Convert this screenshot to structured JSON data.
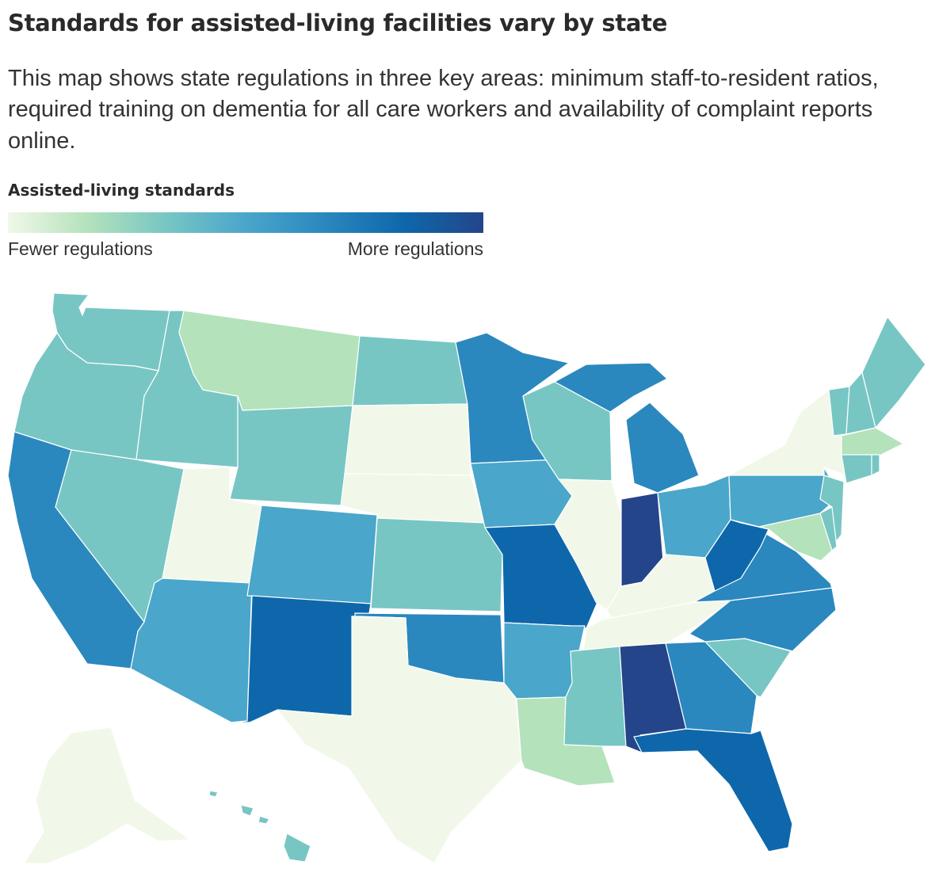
{
  "title": "Standards for assisted-living facilities vary by state",
  "subtitle": "This map shows state regulations in three key areas: minimum staff-to-resident ratios, required training on dementia for all care workers and availability of complaint reports online.",
  "legend": {
    "title": "Assisted-living standards",
    "low_label": "Fewer regulations",
    "high_label": "More regulations",
    "colors": [
      "#f1f8e9",
      "#b4e2bb",
      "#77c6c4",
      "#4aa6ca",
      "#2a88be",
      "#0e67ab",
      "#24458a"
    ]
  },
  "map_data": {
    "type": "choropleth",
    "scale": "regulation level, 0 = fewer regulations, 6 = more regulations",
    "states": [
      {
        "name": "WA",
        "level": 2
      },
      {
        "name": "OR",
        "level": 2
      },
      {
        "name": "CA",
        "level": 4
      },
      {
        "name": "ID",
        "level": 2
      },
      {
        "name": "NV",
        "level": 2
      },
      {
        "name": "MT",
        "level": 1
      },
      {
        "name": "WY",
        "level": 2
      },
      {
        "name": "UT",
        "level": 0
      },
      {
        "name": "AZ",
        "level": 3
      },
      {
        "name": "CO",
        "level": 3
      },
      {
        "name": "NM",
        "level": 5
      },
      {
        "name": "ND",
        "level": 2
      },
      {
        "name": "SD",
        "level": 0
      },
      {
        "name": "NE",
        "level": 0
      },
      {
        "name": "KS",
        "level": 2
      },
      {
        "name": "OK",
        "level": 4
      },
      {
        "name": "TX",
        "level": 0
      },
      {
        "name": "MN",
        "level": 4
      },
      {
        "name": "IA",
        "level": 3
      },
      {
        "name": "MO",
        "level": 5
      },
      {
        "name": "AR",
        "level": 3
      },
      {
        "name": "LA",
        "level": 1
      },
      {
        "name": "WI",
        "level": 2
      },
      {
        "name": "IL",
        "level": 0
      },
      {
        "name": "MI",
        "level": 4
      },
      {
        "name": "IN",
        "level": 6
      },
      {
        "name": "OH",
        "level": 3
      },
      {
        "name": "KY",
        "level": 0
      },
      {
        "name": "TN",
        "level": 0
      },
      {
        "name": "MS",
        "level": 2
      },
      {
        "name": "AL",
        "level": 6
      },
      {
        "name": "GA",
        "level": 4
      },
      {
        "name": "FL",
        "level": 5
      },
      {
        "name": "SC",
        "level": 2
      },
      {
        "name": "NC",
        "level": 4
      },
      {
        "name": "VA",
        "level": 4
      },
      {
        "name": "WV",
        "level": 5
      },
      {
        "name": "PA",
        "level": 3
      },
      {
        "name": "NY",
        "level": 0
      },
      {
        "name": "VT",
        "level": 2
      },
      {
        "name": "NH",
        "level": 2
      },
      {
        "name": "ME",
        "level": 2
      },
      {
        "name": "MA",
        "level": 1
      },
      {
        "name": "RI",
        "level": 2
      },
      {
        "name": "CT",
        "level": 2
      },
      {
        "name": "NJ",
        "level": 2
      },
      {
        "name": "DE",
        "level": 2
      },
      {
        "name": "MD",
        "level": 1
      },
      {
        "name": "AK",
        "level": 0
      },
      {
        "name": "HI",
        "level": 2
      }
    ]
  }
}
